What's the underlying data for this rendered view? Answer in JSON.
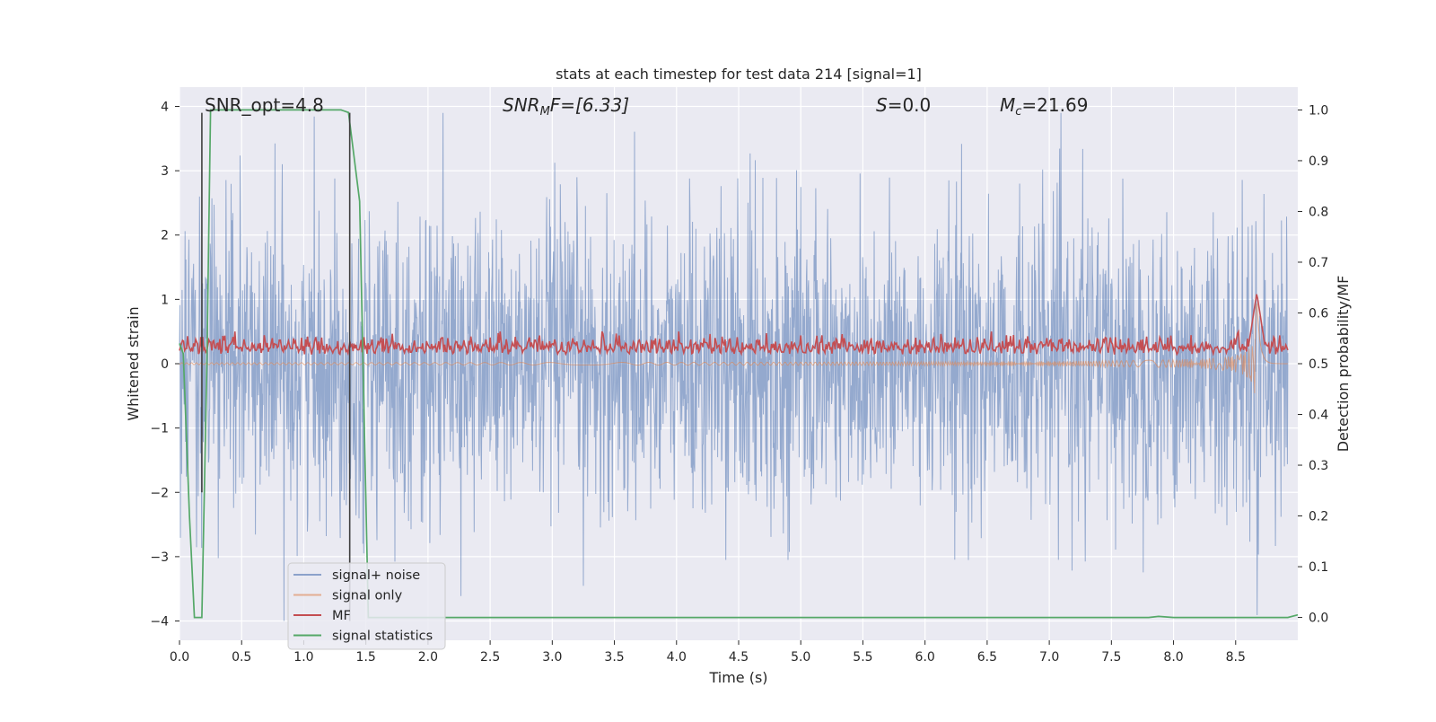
{
  "chart_data": {
    "type": "line",
    "title": "stats at each timestep for test data 214 [signal=1]",
    "xlabel": "Time (s)",
    "ylabel_left": "Whitened strain",
    "ylabel_right": "Detection probability/MF",
    "xlim": [
      0.0,
      9.0
    ],
    "ylim_left": [
      -4.3,
      4.3
    ],
    "ylim_right": [
      -0.045,
      1.045
    ],
    "x_ticks": [
      "0.0",
      "0.5",
      "1.0",
      "1.5",
      "2.0",
      "2.5",
      "3.0",
      "3.5",
      "4.0",
      "4.5",
      "5.0",
      "5.5",
      "6.0",
      "6.5",
      "7.0",
      "7.5",
      "8.0",
      "8.5"
    ],
    "y_ticks_left": [
      "4",
      "3",
      "2",
      "1",
      "0",
      "−1",
      "−2",
      "−3",
      "−4"
    ],
    "y_ticks_right": [
      "1.0",
      "0.9",
      "0.8",
      "0.7",
      "0.6",
      "0.5",
      "0.4",
      "0.3",
      "0.2",
      "0.1",
      "0.0"
    ],
    "grid": true,
    "annotations": {
      "snr_opt": "SNR_opt=4.8",
      "snr_mf_base": "SNR",
      "snr_mf_sub": "M",
      "snr_mf_rest": "F=[6.33]",
      "s_label": "S",
      "s_value": "=0.0",
      "mc_base": "M",
      "mc_sub": "c",
      "mc_value": "=21.69"
    },
    "legend_position": "lower-left",
    "series": [
      {
        "name": "signal+ noise",
        "color": "#4c72b0",
        "axis": "left",
        "kind": "noise",
        "amplitude_range": [
          -4.0,
          3.9
        ]
      },
      {
        "name": "signal only",
        "color": "#dd8452",
        "axis": "left",
        "kind": "chirp",
        "peak_time": 8.67,
        "peak_amplitude": 1.0
      },
      {
        "name": "MF",
        "color": "#c44e52",
        "axis": "left",
        "kind": "mf",
        "typical_range": [
          0.0,
          0.5
        ],
        "peak_time": 8.67,
        "peak_value": 1.0
      },
      {
        "name": "signal statistics",
        "color": "#55a868",
        "axis": "right",
        "x": [
          0.0,
          0.03,
          0.08,
          0.12,
          0.18,
          0.22,
          0.25,
          0.3,
          1.0,
          1.3,
          1.36,
          1.45,
          1.52,
          2.5,
          7.8,
          7.88,
          8.0,
          8.92,
          9.0
        ],
        "y": [
          0.54,
          0.52,
          0.2,
          0.0,
          0.0,
          0.5,
          1.0,
          1.0,
          1.0,
          1.0,
          0.995,
          0.82,
          0.0,
          0.0,
          0.0,
          0.002,
          0.0,
          0.0,
          0.005
        ]
      }
    ],
    "vertical_markers": [
      {
        "x": 0.18,
        "color": "#404040",
        "y_top": 3.9,
        "y_bottom": -2.0
      },
      {
        "x": 1.37,
        "color": "#404040",
        "y_top": 3.9,
        "y_bottom": -4.0
      }
    ]
  }
}
